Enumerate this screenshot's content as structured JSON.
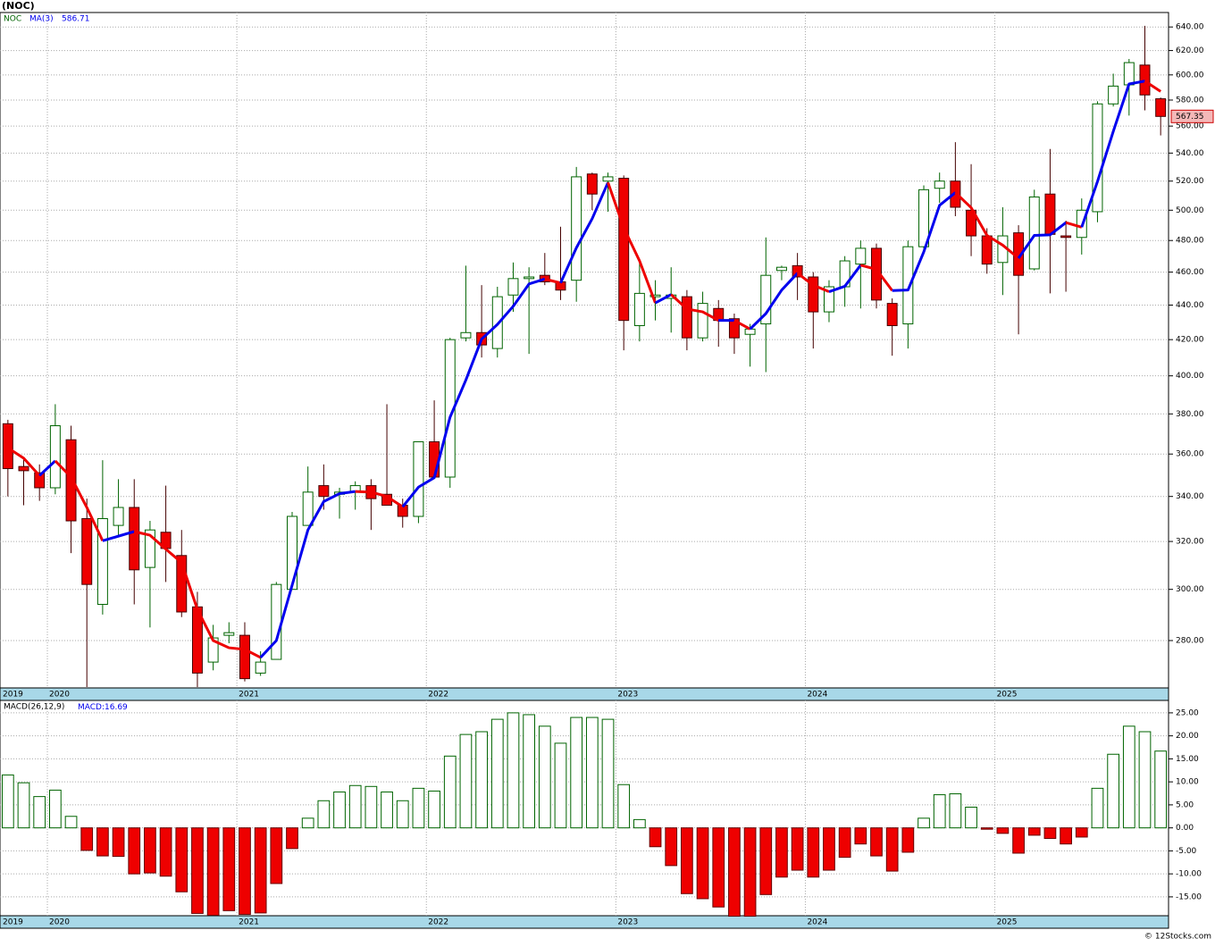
{
  "footer": "© 12Stocks.com",
  "chart_data": [
    {
      "type": "candlestick",
      "title": "(NOC)",
      "symbol": "NOC",
      "categories": [
        "2019",
        null,
        null,
        "2020",
        null,
        null,
        null,
        null,
        null,
        null,
        null,
        null,
        null,
        null,
        null,
        "2021",
        null,
        null,
        null,
        null,
        null,
        null,
        null,
        null,
        null,
        null,
        null,
        "2022",
        null,
        null,
        null,
        null,
        null,
        null,
        null,
        null,
        null,
        null,
        null,
        "2023",
        null,
        null,
        null,
        null,
        null,
        null,
        null,
        null,
        null,
        null,
        null,
        "2024",
        null,
        null,
        null,
        null,
        null,
        null,
        null,
        null,
        null,
        null,
        null,
        "2025",
        null,
        null,
        null,
        null,
        null,
        null,
        null,
        null,
        null,
        null
      ],
      "open": [
        375,
        354,
        351,
        344,
        367,
        330,
        294,
        327,
        335,
        309,
        324,
        314,
        293,
        272,
        282,
        282,
        268,
        273,
        300,
        327,
        345,
        341,
        342,
        345,
        341,
        336,
        331,
        366,
        349,
        421,
        424,
        415,
        446,
        456,
        458,
        454,
        455,
        525,
        520,
        522,
        428,
        445,
        444,
        445,
        421,
        438,
        432,
        423,
        429,
        461,
        464,
        457,
        436,
        451,
        465,
        475,
        441,
        429,
        476,
        515,
        520,
        500,
        483,
        466,
        485,
        462,
        511,
        483,
        482,
        499,
        577,
        592,
        608,
        581
      ],
      "high": [
        377,
        358,
        355,
        385,
        374,
        339,
        357,
        348,
        348,
        329,
        345,
        325,
        299,
        286,
        287,
        287,
        276,
        303,
        333,
        354,
        355,
        344,
        347,
        348,
        385,
        339,
        366,
        387,
        421,
        464,
        452,
        451,
        466,
        463,
        472,
        489,
        530,
        526,
        526,
        524,
        466,
        455,
        463,
        449,
        448,
        443,
        435,
        429,
        482,
        464,
        472,
        460,
        455,
        470,
        480,
        478,
        444,
        480,
        517,
        526,
        548,
        532,
        488,
        502,
        490,
        514,
        543,
        493,
        508,
        579,
        601,
        613,
        641,
        582
      ],
      "low": [
        340,
        336,
        338,
        341,
        315,
        263,
        290,
        322,
        294,
        285,
        303,
        289,
        263,
        269,
        279,
        265,
        267,
        273,
        300,
        327,
        334,
        330,
        334,
        325,
        336,
        326,
        328,
        349,
        344,
        419,
        410,
        410,
        436,
        412,
        452,
        443,
        442,
        500,
        499,
        414,
        419,
        431,
        424,
        414,
        419,
        416,
        412,
        405,
        402,
        455,
        443,
        415,
        430,
        439,
        438,
        438,
        411,
        415,
        474,
        505,
        496,
        470,
        459,
        446,
        423,
        461,
        447,
        448,
        471,
        492,
        575,
        568,
        572,
        553
      ],
      "close": [
        353,
        352,
        344,
        374,
        329,
        302,
        330,
        335,
        308,
        325,
        317,
        291,
        268,
        281,
        283,
        266,
        272,
        302,
        331,
        342,
        340,
        342,
        345,
        339,
        336,
        331,
        366,
        349,
        420,
        424,
        417,
        445,
        456,
        457,
        454,
        449,
        523,
        511,
        523,
        431,
        447,
        446,
        446,
        421,
        441,
        431,
        421,
        426,
        458,
        463,
        457,
        436,
        451,
        467,
        475,
        443,
        428,
        476,
        514,
        520,
        502,
        483,
        465,
        483,
        458,
        509,
        484,
        482,
        500,
        577,
        591,
        610,
        584,
        567.35
      ],
      "up_color": "#006400",
      "down_color": "#ee0000",
      "ma": {
        "name": "MA(3)",
        "color": "#0000ee",
        "down_color": "#ee0000",
        "values": [
          363,
          358,
          349.7,
          356.7,
          349,
          335,
          320.3,
          322.3,
          324.3,
          322.7,
          316.7,
          311,
          292,
          280,
          277.3,
          276.7,
          273.7,
          280,
          301.7,
          325,
          337.7,
          341.3,
          342.3,
          342,
          340,
          335.3,
          344.3,
          348.7,
          378.3,
          397.7,
          420.3,
          428.7,
          439.3,
          452.7,
          455.7,
          453.3,
          475.3,
          494.3,
          519,
          488.3,
          467,
          441.3,
          446.3,
          437.7,
          436,
          431,
          431,
          426,
          435,
          449,
          459.3,
          452,
          448,
          451.3,
          464.3,
          461.7,
          448.7,
          449,
          472.7,
          503.3,
          512,
          501.7,
          483.3,
          477,
          468.7,
          483.3,
          483.7,
          491.7,
          488.7,
          519.7,
          556,
          592.7,
          595,
          586.71
        ]
      },
      "log_scale": true,
      "grid": true,
      "ylim": [
        262.7,
        652.6
      ],
      "yticks": [
        {
          "value": 280,
          "label": "280.00"
        },
        {
          "value": 300,
          "label": "300.00"
        },
        {
          "value": 320,
          "label": "320.00"
        },
        {
          "value": 340,
          "label": "340.00"
        },
        {
          "value": 360,
          "label": "360.00"
        },
        {
          "value": 380,
          "label": "380.00"
        },
        {
          "value": 400,
          "label": "400.00"
        },
        {
          "value": 420,
          "label": "420.00"
        },
        {
          "value": 440,
          "label": "440.00"
        },
        {
          "value": 460,
          "label": "460.00"
        },
        {
          "value": 480,
          "label": "480.00"
        },
        {
          "value": 500,
          "label": "500.00"
        },
        {
          "value": 520,
          "label": "520.00"
        },
        {
          "value": 540,
          "label": "540.00"
        },
        {
          "value": 560,
          "label": "560.00"
        },
        {
          "value": 580,
          "label": "580.00"
        },
        {
          "value": 600,
          "label": "600.00"
        },
        {
          "value": 620,
          "label": "620.00"
        },
        {
          "value": 640,
          "label": "640.00"
        }
      ]
    },
    {
      "type": "bar",
      "title": "MACD(26,12,9)",
      "value_prefix": "MACD:",
      "categories": [
        "2019",
        null,
        null,
        "2020",
        null,
        null,
        null,
        null,
        null,
        null,
        null,
        null,
        null,
        null,
        null,
        "2021",
        null,
        null,
        null,
        null,
        null,
        null,
        null,
        null,
        null,
        null,
        null,
        "2022",
        null,
        null,
        null,
        null,
        null,
        null,
        null,
        null,
        null,
        null,
        null,
        "2023",
        null,
        null,
        null,
        null,
        null,
        null,
        null,
        null,
        null,
        null,
        null,
        "2024",
        null,
        null,
        null,
        null,
        null,
        null,
        null,
        null,
        null,
        null,
        null,
        "2025",
        null,
        null,
        null,
        null,
        null,
        null,
        null,
        null,
        null,
        null
      ],
      "values": [
        11.5,
        9.8,
        6.8,
        8.2,
        2.5,
        -4.9,
        -6.1,
        -6.2,
        -10,
        -9.8,
        -10.5,
        -13.9,
        -18.6,
        -19,
        -18,
        -18.8,
        -18.5,
        -12.1,
        -4.5,
        2.1,
        5.9,
        7.8,
        9.2,
        9.0,
        7.8,
        5.9,
        8.6,
        8.0,
        15.6,
        20.3,
        20.9,
        23.6,
        25,
        24.6,
        22.1,
        18.4,
        24,
        24,
        23.6,
        9.4,
        1.8,
        -4.1,
        -8.2,
        -14.3,
        -15.4,
        -17.2,
        -19.2,
        -19.2,
        -14.5,
        -10.7,
        -9.2,
        -10.7,
        -9.2,
        -6.4,
        -3.5,
        -6.1,
        -9.4,
        -5.3,
        2.1,
        7.2,
        7.4,
        4.5,
        -0.3,
        -1.2,
        -5.5,
        -1.6,
        -2.3,
        -3.5,
        -2,
        8.6,
        16,
        22.1,
        20.9,
        16.69
      ],
      "up_color": "#006400",
      "down_color": "#ee0000",
      "value_color": "#0000ee",
      "grid": true,
      "ylim": [
        -19.1,
        27.7
      ],
      "yticks": [
        {
          "value": -15,
          "label": "-15.00"
        },
        {
          "value": -10,
          "label": "-10.00"
        },
        {
          "value": -5,
          "label": "-5.00"
        },
        {
          "value": 0,
          "label": "0.00"
        },
        {
          "value": 5,
          "label": "5.00"
        },
        {
          "value": 10,
          "label": "10.00"
        },
        {
          "value": 15,
          "label": "15.00"
        },
        {
          "value": 20,
          "label": "20.00"
        },
        {
          "value": 25,
          "label": "25.00"
        }
      ]
    }
  ]
}
